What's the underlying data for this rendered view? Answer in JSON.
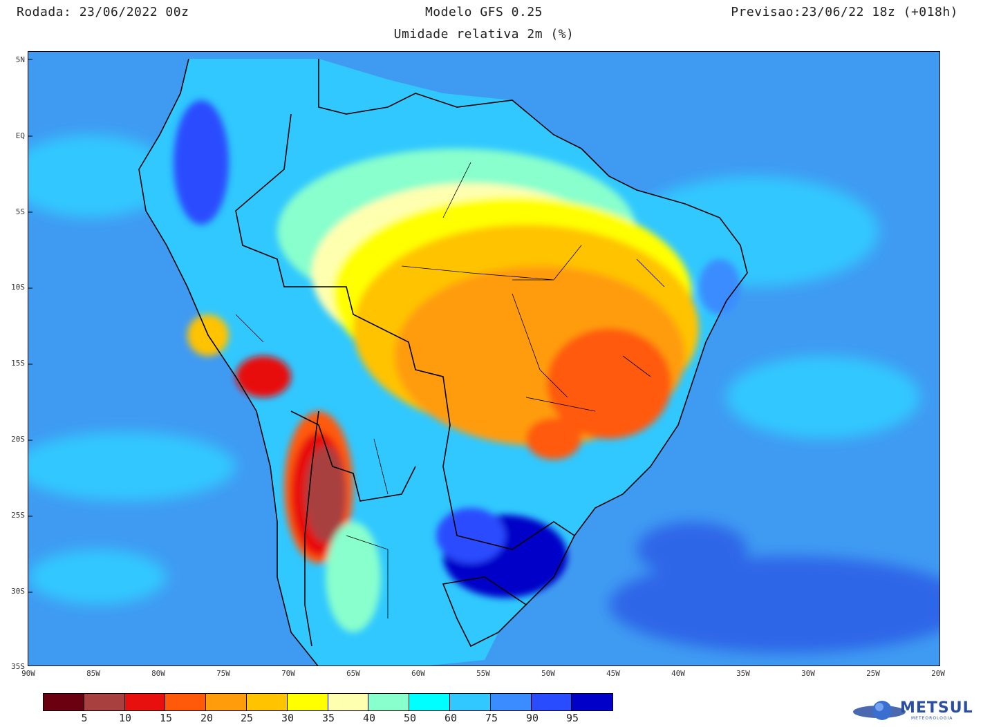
{
  "header": {
    "run": "Rodada: 23/06/2022 00z",
    "model": "Modelo GFS 0.25",
    "valid": "Previsao:23/06/22 18z (+018h)",
    "subtitle": "Umidade relativa 2m (%)"
  },
  "axes": {
    "lat_labels": [
      "5N",
      "EQ",
      "5S",
      "10S",
      "15S",
      "20S",
      "25S",
      "30S",
      "35S"
    ],
    "lon_labels": [
      "90W",
      "85W",
      "80W",
      "75W",
      "70W",
      "65W",
      "60W",
      "55W",
      "50W",
      "45W",
      "40W",
      "35W",
      "30W",
      "25W",
      "20W"
    ]
  },
  "colorbar": {
    "colors": [
      "#6b0010",
      "#a84040",
      "#e8100e",
      "#ff5a0a",
      "#ff9c0c",
      "#ffc300",
      "#ffff00",
      "#ffffb0",
      "#88ffcc",
      "#00ffff",
      "#30c8ff",
      "#3a8cff",
      "#2a4cff",
      "#0000c8"
    ],
    "labels": [
      "5",
      "10",
      "15",
      "20",
      "25",
      "30",
      "35",
      "40",
      "50",
      "60",
      "75",
      "90",
      "95"
    ]
  },
  "legend_colors": {
    "ocean": "#3f9bf2",
    "ocean_dark": "#2f66e8",
    "boundary": "#000000"
  },
  "logo": {
    "name": "METSUL",
    "tagline": "METEOROLOGIA"
  }
}
